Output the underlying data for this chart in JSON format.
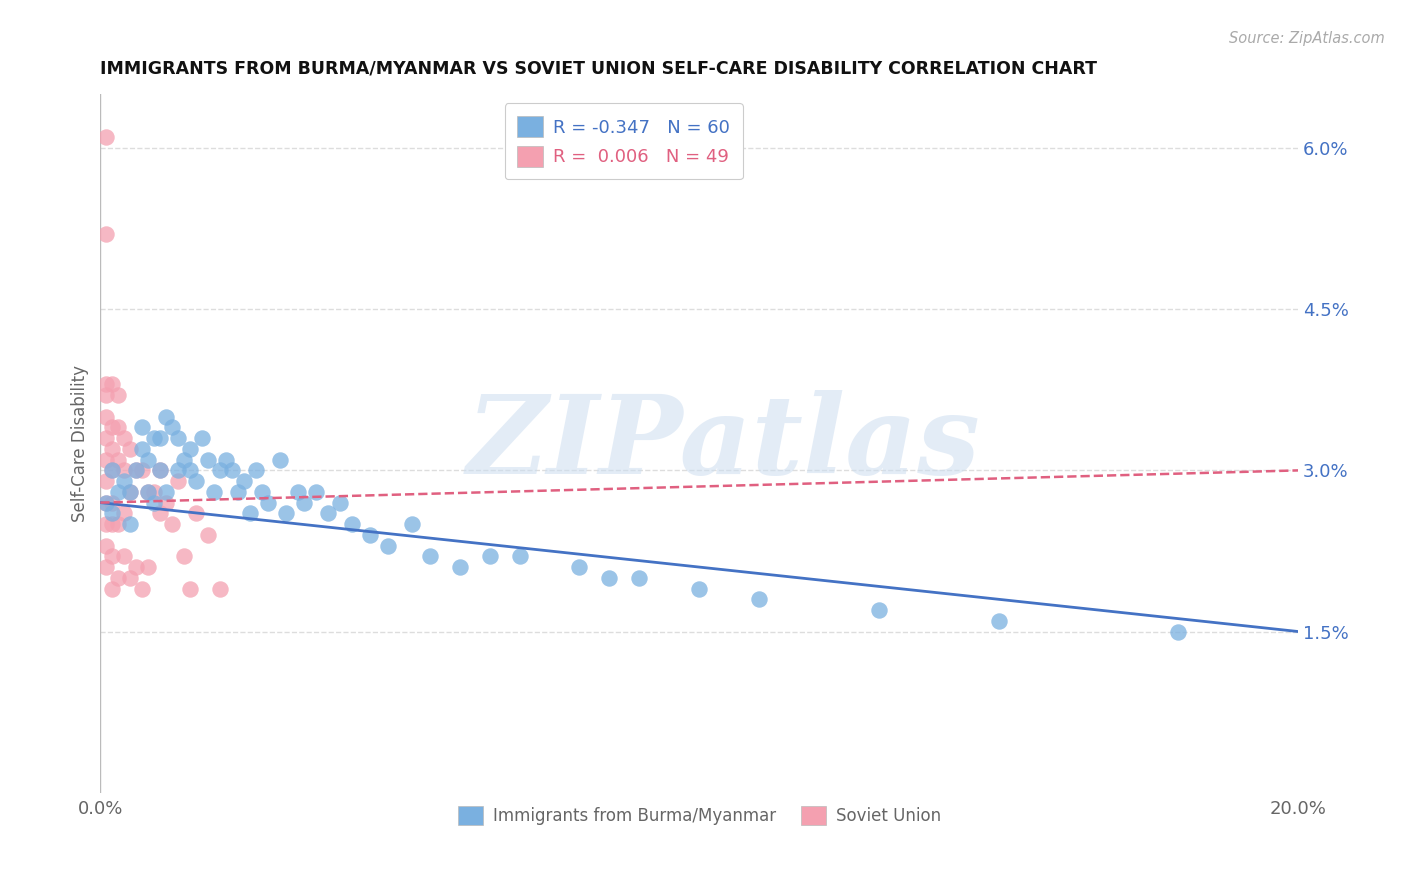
{
  "title": "IMMIGRANTS FROM BURMA/MYANMAR VS SOVIET UNION SELF-CARE DISABILITY CORRELATION CHART",
  "source": "Source: ZipAtlas.com",
  "ylabel": "Self-Care Disability",
  "xlim": [
    0.0,
    0.2
  ],
  "ylim": [
    0.0,
    0.065
  ],
  "xticks": [
    0.0,
    0.04,
    0.08,
    0.12,
    0.16,
    0.2
  ],
  "xtick_labels": [
    "0.0%",
    "",
    "",
    "",
    "",
    "20.0%"
  ],
  "ytick_labels_right": [
    "6.0%",
    "4.5%",
    "3.0%",
    "1.5%"
  ],
  "yticks_right": [
    0.06,
    0.045,
    0.03,
    0.015
  ],
  "grid_color": "#dddddd",
  "background_color": "#ffffff",
  "watermark": "ZIPatlas",
  "legend_r_blue": "-0.347",
  "legend_n_blue": "60",
  "legend_r_pink": "0.006",
  "legend_n_pink": "49",
  "blue_color": "#7ab0e0",
  "pink_color": "#f4a0b0",
  "blue_line_color": "#4472c4",
  "pink_line_color": "#e06080",
  "legend_label_blue": "Immigrants from Burma/Myanmar",
  "legend_label_pink": "Soviet Union",
  "blue_scatter_x": [
    0.001,
    0.002,
    0.002,
    0.003,
    0.004,
    0.005,
    0.005,
    0.006,
    0.007,
    0.007,
    0.008,
    0.008,
    0.009,
    0.009,
    0.01,
    0.01,
    0.011,
    0.011,
    0.012,
    0.013,
    0.013,
    0.014,
    0.015,
    0.015,
    0.016,
    0.017,
    0.018,
    0.019,
    0.02,
    0.021,
    0.022,
    0.023,
    0.024,
    0.025,
    0.026,
    0.027,
    0.028,
    0.03,
    0.031,
    0.033,
    0.034,
    0.036,
    0.038,
    0.04,
    0.042,
    0.045,
    0.048,
    0.052,
    0.055,
    0.06,
    0.065,
    0.07,
    0.08,
    0.085,
    0.09,
    0.1,
    0.11,
    0.13,
    0.15,
    0.18
  ],
  "blue_scatter_y": [
    0.027,
    0.026,
    0.03,
    0.028,
    0.029,
    0.028,
    0.025,
    0.03,
    0.034,
    0.032,
    0.031,
    0.028,
    0.033,
    0.027,
    0.033,
    0.03,
    0.035,
    0.028,
    0.034,
    0.033,
    0.03,
    0.031,
    0.032,
    0.03,
    0.029,
    0.033,
    0.031,
    0.028,
    0.03,
    0.031,
    0.03,
    0.028,
    0.029,
    0.026,
    0.03,
    0.028,
    0.027,
    0.031,
    0.026,
    0.028,
    0.027,
    0.028,
    0.026,
    0.027,
    0.025,
    0.024,
    0.023,
    0.025,
    0.022,
    0.021,
    0.022,
    0.022,
    0.021,
    0.02,
    0.02,
    0.019,
    0.018,
    0.017,
    0.016,
    0.015
  ],
  "pink_scatter_x": [
    0.001,
    0.001,
    0.001,
    0.001,
    0.001,
    0.001,
    0.001,
    0.001,
    0.001,
    0.001,
    0.001,
    0.001,
    0.002,
    0.002,
    0.002,
    0.002,
    0.002,
    0.002,
    0.002,
    0.002,
    0.003,
    0.003,
    0.003,
    0.003,
    0.003,
    0.004,
    0.004,
    0.004,
    0.004,
    0.005,
    0.005,
    0.005,
    0.006,
    0.006,
    0.007,
    0.007,
    0.008,
    0.008,
    0.009,
    0.01,
    0.01,
    0.011,
    0.012,
    0.013,
    0.014,
    0.015,
    0.016,
    0.018,
    0.02
  ],
  "pink_scatter_y": [
    0.061,
    0.052,
    0.038,
    0.037,
    0.035,
    0.033,
    0.031,
    0.029,
    0.027,
    0.025,
    0.023,
    0.021,
    0.038,
    0.034,
    0.032,
    0.03,
    0.027,
    0.025,
    0.022,
    0.019,
    0.037,
    0.034,
    0.031,
    0.025,
    0.02,
    0.033,
    0.03,
    0.026,
    0.022,
    0.032,
    0.028,
    0.02,
    0.03,
    0.021,
    0.03,
    0.019,
    0.028,
    0.021,
    0.028,
    0.03,
    0.026,
    0.027,
    0.025,
    0.029,
    0.022,
    0.019,
    0.026,
    0.024,
    0.019
  ]
}
